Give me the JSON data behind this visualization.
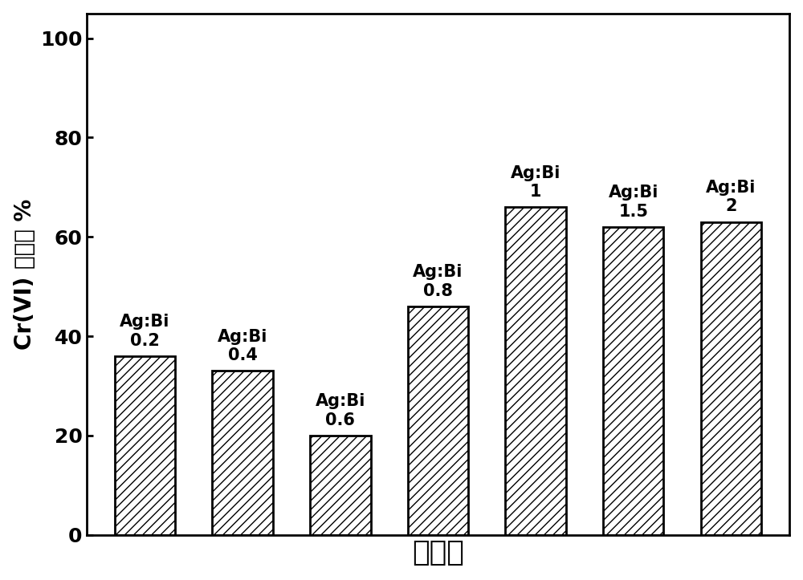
{
  "categories": [
    "0.2",
    "0.4",
    "0.6",
    "0.8",
    "1",
    "1.5",
    "2"
  ],
  "labels": [
    "Ag:Bi\n0.2",
    "Ag:Bi\n0.4",
    "Ag:Bi\n0.6",
    "Ag:Bi\n0.8",
    "Ag:Bi\n1",
    "Ag:Bi\n1.5",
    "Ag:Bi\n2"
  ],
  "values": [
    36,
    33,
    20,
    46,
    66,
    62,
    63
  ],
  "bar_color": "#ffffff",
  "bar_edgecolor": "#000000",
  "hatch": "///",
  "ylabel": "Cr(VI) 去除率 %",
  "xlabel": "催化剑",
  "ylim": [
    0,
    105
  ],
  "yticks": [
    0,
    20,
    40,
    60,
    80,
    100
  ],
  "bar_width": 0.62,
  "axis_label_fontsize": 20,
  "xlabel_fontsize": 26,
  "tick_fontsize": 18,
  "annotation_fontsize": 15,
  "background_color": "#ffffff",
  "linewidth": 2.0
}
